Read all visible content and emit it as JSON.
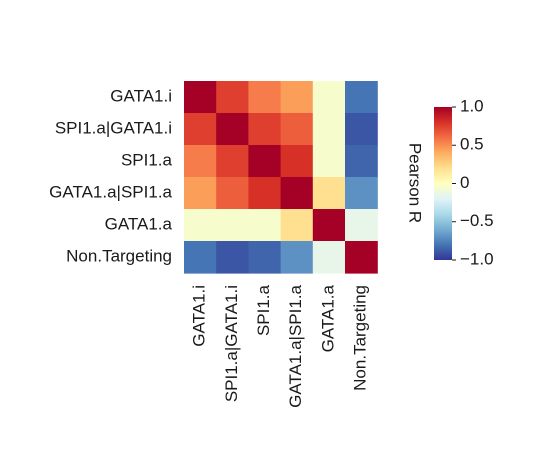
{
  "chart_data": {
    "type": "heatmap",
    "rows": [
      "GATA1.i",
      "SPI1.a|GATA1.i",
      "SPI1.a",
      "GATA1.a|SPI1.a",
      "GATA1.a",
      "Non.Targeting"
    ],
    "columns": [
      "GATA1.i",
      "SPI1.a|GATA1.i",
      "SPI1.a",
      "GATA1.a|SPI1.a",
      "GATA1.a",
      "Non.Targeting"
    ],
    "values": [
      [
        1.0,
        0.75,
        0.55,
        0.45,
        -0.05,
        -0.8
      ],
      [
        0.75,
        1.0,
        0.75,
        0.65,
        -0.05,
        -0.9
      ],
      [
        0.55,
        0.75,
        1.0,
        0.8,
        -0.05,
        -0.85
      ],
      [
        0.45,
        0.65,
        0.8,
        1.0,
        0.2,
        -0.7
      ],
      [
        -0.05,
        -0.05,
        -0.05,
        0.2,
        1.0,
        -0.15
      ],
      [
        -0.8,
        -0.9,
        -0.85,
        -0.7,
        -0.15,
        1.0
      ]
    ],
    "colorbar": {
      "label": "Pearson R",
      "range": [
        -1.0,
        1.0
      ],
      "ticks": [
        1.0,
        0.5,
        0,
        -0.5,
        -1.0
      ],
      "tick_labels": [
        "1.0",
        "0.5",
        "0",
        "−0.5",
        "−1.0"
      ],
      "colors": [
        "#313695",
        "#4575b4",
        "#74add1",
        "#abd9e9",
        "#e0f3f8",
        "#ffffbf",
        "#fee090",
        "#fdae61",
        "#f46d43",
        "#d73027",
        "#a50026"
      ]
    }
  }
}
